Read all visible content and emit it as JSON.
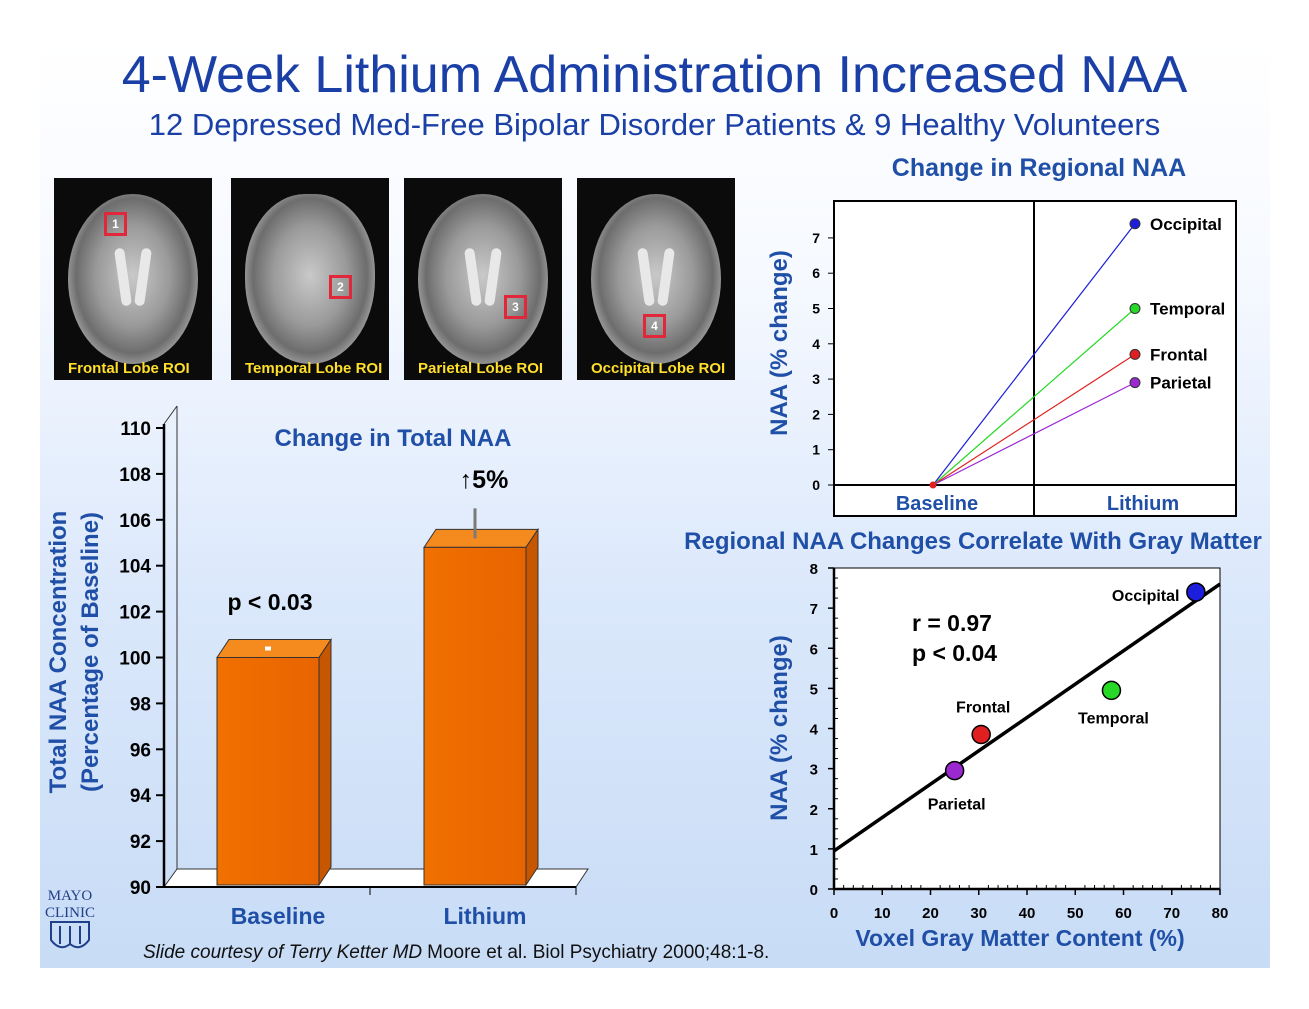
{
  "title": "4-Week Lithium Administration Increased NAA",
  "subtitle": "12 Depressed Med-Free Bipolar Disorder Patients & 9 Healthy Volunteers",
  "brain_images": [
    {
      "label": "Frontal Lobe ROI",
      "roi_number": "1"
    },
    {
      "label": "Temporal Lobe ROI",
      "roi_number": "2"
    },
    {
      "label": "Parietal Lobe ROI",
      "roi_number": "3"
    },
    {
      "label": "Occipital Lobe ROI",
      "roi_number": "4"
    }
  ],
  "logo": {
    "line1": "MAYO",
    "line2": "CLINIC"
  },
  "citation": {
    "italic": "Slide courtesy of Terry Ketter MD",
    "normal": "Moore et al. Biol Psychiatry 2000;48:1-8."
  },
  "colors": {
    "title": "#1a3fa6",
    "axis_label": "#1f4fa6",
    "bar": "#ee6b06",
    "occipital": "#1d1ddc",
    "temporal": "#27d827",
    "frontal": "#e02020",
    "parietal": "#9a2ad0"
  },
  "chart_data": [
    {
      "type": "bar",
      "title": "Change in Total NAA",
      "ylabel": "Total NAA Concentration (Percentage of Baseline)",
      "ylim": [
        90,
        110
      ],
      "yticks": [
        "90",
        "92",
        "94",
        "96",
        "98",
        "100",
        "102",
        "104",
        "106",
        "108",
        "110"
      ],
      "categories": [
        "Baseline",
        "Lithium"
      ],
      "values": [
        100,
        104.8
      ],
      "error_upper": [
        100,
        106.5
      ],
      "annotations": {
        "pvalue": "p < 0.03",
        "increase": "↑5%"
      }
    },
    {
      "type": "line",
      "title": "Change in Regional NAA",
      "ylabel": "NAA  (% change)",
      "ylim": [
        0,
        7.5
      ],
      "yticks": [
        "0",
        "1",
        "2",
        "3",
        "4",
        "5",
        "6",
        "7"
      ],
      "categories": [
        "Baseline",
        "Lithium"
      ],
      "series": [
        {
          "name": "Occipital",
          "values": [
            0,
            7.4
          ]
        },
        {
          "name": "Temporal",
          "values": [
            0,
            5.0
          ]
        },
        {
          "name": "Frontal",
          "values": [
            0,
            3.7
          ]
        },
        {
          "name": "Parietal",
          "values": [
            0,
            2.9
          ]
        }
      ]
    },
    {
      "type": "scatter",
      "title": "Regional NAA Changes Correlate With Gray Matter",
      "xlabel": "Voxel Gray Matter Content (%)",
      "ylabel": "NAA  (% change)",
      "xlim": [
        0,
        80
      ],
      "ylim": [
        0,
        8
      ],
      "xticks": [
        "0",
        "10",
        "20",
        "30",
        "40",
        "50",
        "60",
        "70",
        "80"
      ],
      "yticks": [
        "0",
        "1",
        "2",
        "3",
        "4",
        "5",
        "6",
        "7",
        "8"
      ],
      "points": [
        {
          "name": "Occipital",
          "x": 75,
          "y": 7.4
        },
        {
          "name": "Temporal",
          "x": 57.5,
          "y": 4.95
        },
        {
          "name": "Frontal",
          "x": 30.5,
          "y": 3.85
        },
        {
          "name": "Parietal",
          "x": 25,
          "y": 2.95
        }
      ],
      "fit": {
        "x": [
          0,
          80
        ],
        "y": [
          0.95,
          7.6
        ]
      },
      "annotations": {
        "r": "r = 0.97",
        "p": "p < 0.04"
      }
    }
  ]
}
